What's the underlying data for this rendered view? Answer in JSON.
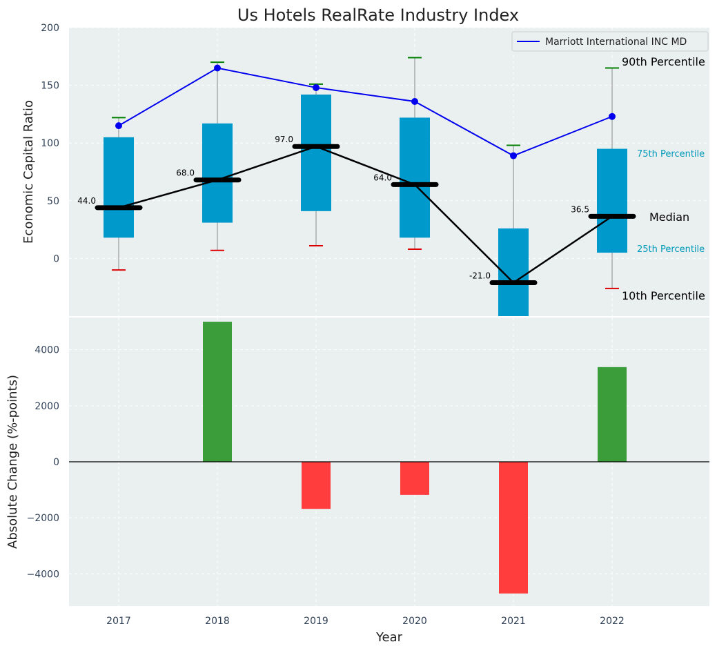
{
  "chart_data": [
    {
      "type": "box",
      "title": "Us Hotels RealRate Industry Index",
      "ylabel": "Economic Capital Ratio",
      "ylim": [
        -50,
        200
      ],
      "yticks": [
        0,
        50,
        100,
        150,
        200
      ],
      "categories": [
        "2017",
        "2018",
        "2019",
        "2020",
        "2021",
        "2022"
      ],
      "grid": true,
      "legend": {
        "position": "top-right",
        "entries": [
          "Marriott International INC MD"
        ]
      },
      "p10": [
        -10,
        7,
        11,
        8,
        -50,
        -26
      ],
      "p25": [
        18,
        31,
        41,
        18,
        -50,
        5
      ],
      "median": [
        44.0,
        68.0,
        97.0,
        64.0,
        -21.0,
        36.5
      ],
      "median_labels": [
        "44.0",
        "68.0",
        "97.0",
        "64.0",
        "-21.0",
        "36.5"
      ],
      "p75": [
        105,
        117,
        142,
        122,
        26,
        95
      ],
      "p90": [
        122,
        170,
        151,
        174,
        98,
        165
      ],
      "series": [
        {
          "name": "Marriott International INC MD",
          "values": [
            115,
            165,
            148,
            136,
            89,
            123
          ]
        }
      ],
      "annotations": {
        "p90": "90th Percentile",
        "p75": "75th Percentile",
        "median": "Median",
        "p25": "25th Percentile",
        "p10": "10th Percentile"
      },
      "colors": {
        "box": "#0099cc",
        "company_line": "#0000ee",
        "median_line": "#000000",
        "p90_cap": "#008000",
        "p10_cap": "#dd0000",
        "whisker": "#888888",
        "percentile_label": "#0099bb",
        "background": "#eaeff0"
      }
    },
    {
      "type": "bar",
      "categories": [
        "2017",
        "2018",
        "2019",
        "2020",
        "2021",
        "2022"
      ],
      "values": [
        0,
        5000,
        -1680,
        -1180,
        -4700,
        3380
      ],
      "xlabel": "Year",
      "ylabel": "Absolute Change (%-points)",
      "ylim": [
        -5150,
        5150
      ],
      "yticks": [
        -4000,
        -2000,
        0,
        2000,
        4000
      ],
      "ytick_labels": [
        "−4000",
        "−2000",
        "0",
        "2000",
        "4000"
      ],
      "grid": true,
      "colors": {
        "positive": "#3a9d3a",
        "negative": "#ff3d3d",
        "zero_line": "#000000",
        "background": "#eaeff0"
      }
    }
  ]
}
